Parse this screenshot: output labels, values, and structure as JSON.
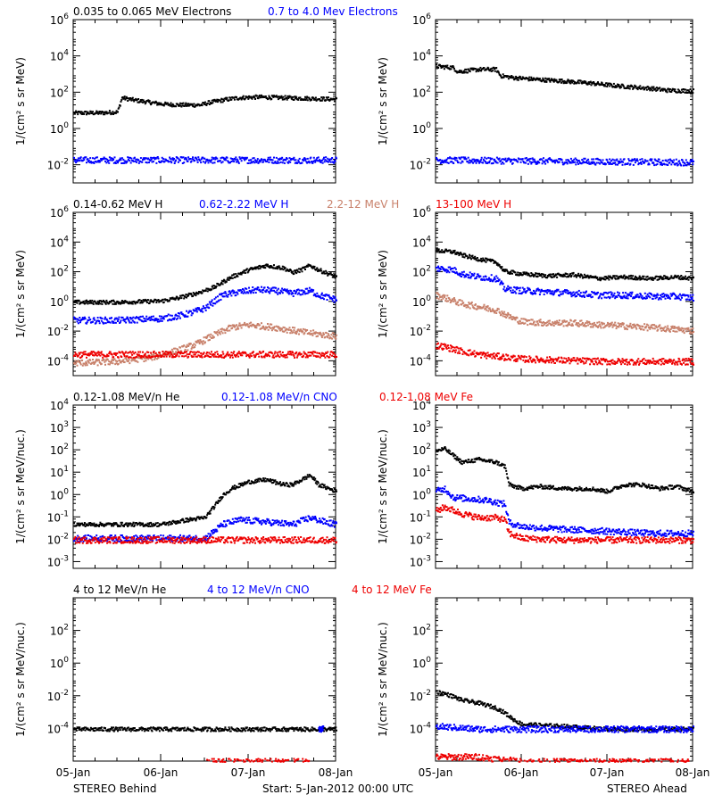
{
  "colors": {
    "black": "#000000",
    "blue": "#0000ff",
    "tan": "#c8806a",
    "red": "#ee0000"
  },
  "footer": {
    "left": "STEREO Behind",
    "center": "Start:  5-Jan-2012 00:00 UTC",
    "right": "STEREO Ahead"
  },
  "chart_data": [
    {
      "type": "scatter",
      "spacecraft": "STEREO Behind",
      "row": 1,
      "legend": [
        "0.035 to 0.065 MeV Electrons",
        "0.7 to 4.0 Mev Electrons"
      ],
      "ylabel": "1/(cm² s sr MeV)",
      "yscale": "log",
      "ylim": [
        0.001,
        1000000
      ],
      "yticks": [
        {
          "v": 0.01,
          "b": "10",
          "e": "-2"
        },
        {
          "v": 1,
          "b": "10",
          "e": "0"
        },
        {
          "v": 100,
          "b": "10",
          "e": "2"
        },
        {
          "v": 10000,
          "b": "10",
          "e": "4"
        },
        {
          "v": 1000000,
          "b": "10",
          "e": "6"
        }
      ],
      "xlim": [
        0,
        3
      ],
      "series": [
        {
          "name": "0.035 to 0.065 MeV Electrons",
          "color": "#000000",
          "x": [
            0,
            0.3,
            0.5,
            0.55,
            0.7,
            1.0,
            1.2,
            1.45,
            1.55,
            1.75,
            1.9,
            2.1,
            2.4,
            2.7,
            3.0
          ],
          "y": [
            8,
            8,
            9,
            55,
            40,
            25,
            22,
            22,
            30,
            45,
            55,
            60,
            55,
            50,
            45
          ]
        },
        {
          "name": "0.7 to 4.0 Mev Electrons",
          "color": "#0000ff",
          "x": [
            0,
            3
          ],
          "y": [
            0.02,
            0.02
          ]
        }
      ]
    },
    {
      "type": "scatter",
      "spacecraft": "STEREO Ahead",
      "row": 1,
      "ylabel": "1/(cm² s sr MeV)",
      "yscale": "log",
      "ylim": [
        0.001,
        1000000
      ],
      "yticks": [
        {
          "v": 0.01,
          "b": "10",
          "e": "-2"
        },
        {
          "v": 1,
          "b": "10",
          "e": "0"
        },
        {
          "v": 100,
          "b": "10",
          "e": "2"
        },
        {
          "v": 10000,
          "b": "10",
          "e": "4"
        },
        {
          "v": 1000000,
          "b": "10",
          "e": "6"
        }
      ],
      "xlim": [
        0,
        3
      ],
      "series": [
        {
          "name": "0.035 to 0.065 MeV Electrons",
          "color": "#000000",
          "x": [
            0,
            0.2,
            0.25,
            0.5,
            0.7,
            0.75,
            0.9,
            1.2,
            1.5,
            1.8,
            2.1,
            2.5,
            2.7,
            3.0
          ],
          "y": [
            3000,
            2500,
            1500,
            2000,
            2000,
            900,
            700,
            550,
            450,
            350,
            250,
            180,
            140,
            130
          ]
        },
        {
          "name": "0.7 to 4.0 Mev Electrons",
          "color": "#0000ff",
          "x": [
            0,
            3
          ],
          "y": [
            0.02,
            0.015
          ]
        }
      ]
    },
    {
      "type": "scatter",
      "spacecraft": "STEREO Behind",
      "row": 2,
      "legend": [
        "0.14-0.62 MeV H",
        "0.62-2.22 MeV H",
        "2.2-12 MeV H",
        "13-100 MeV H"
      ],
      "ylabel": "1/(cm² s sr MeV)",
      "yscale": "log",
      "ylim": [
        1e-05,
        1000000
      ],
      "yticks": [
        {
          "v": 0.0001,
          "b": "10",
          "e": "-4"
        },
        {
          "v": 0.01,
          "b": "10",
          "e": "-2"
        },
        {
          "v": 1,
          "b": "10",
          "e": "0"
        },
        {
          "v": 100,
          "b": "10",
          "e": "2"
        },
        {
          "v": 10000,
          "b": "10",
          "e": "4"
        },
        {
          "v": 1000000,
          "b": "10",
          "e": "6"
        }
      ],
      "xlim": [
        0,
        3
      ],
      "series": [
        {
          "name": "0.14-0.62 MeV H",
          "color": "#000000",
          "x": [
            0,
            0.5,
            1.0,
            1.2,
            1.4,
            1.6,
            1.8,
            2.0,
            2.2,
            2.4,
            2.5,
            2.6,
            2.7,
            2.8,
            3.0
          ],
          "y": [
            1,
            1,
            1.2,
            2,
            4,
            10,
            50,
            150,
            300,
            200,
            100,
            150,
            300,
            150,
            50
          ]
        },
        {
          "name": "0.62-2.22 MeV H",
          "color": "#0000ff",
          "x": [
            0,
            0.5,
            1.0,
            1.2,
            1.35,
            1.5,
            1.7,
            1.9,
            2.1,
            2.3,
            2.5,
            2.7,
            2.8,
            3.0
          ],
          "y": [
            0.06,
            0.06,
            0.08,
            0.12,
            0.2,
            0.4,
            3,
            5,
            7,
            6,
            4,
            6,
            3,
            1.5
          ]
        },
        {
          "name": "2.2-12 MeV H",
          "color": "#c8806a",
          "x": [
            0,
            0.5,
            0.9,
            1.2,
            1.4,
            1.6,
            1.8,
            2.0,
            2.3,
            2.6,
            3.0
          ],
          "y": [
            8e-05,
            0.0001,
            0.0002,
            0.0006,
            0.0015,
            0.006,
            0.02,
            0.03,
            0.02,
            0.01,
            0.005
          ]
        },
        {
          "name": "13-100 MeV H",
          "color": "#ee0000",
          "x": [
            0,
            3
          ],
          "y": [
            0.0003,
            0.0003
          ]
        }
      ]
    },
    {
      "type": "scatter",
      "spacecraft": "STEREO Ahead",
      "row": 2,
      "ylabel": "1/(cm² s sr MeV)",
      "yscale": "log",
      "ylim": [
        1e-05,
        1000000
      ],
      "yticks": [
        {
          "v": 0.0001,
          "b": "10",
          "e": "-4"
        },
        {
          "v": 0.01,
          "b": "10",
          "e": "-2"
        },
        {
          "v": 1,
          "b": "10",
          "e": "0"
        },
        {
          "v": 100,
          "b": "10",
          "e": "2"
        },
        {
          "v": 10000,
          "b": "10",
          "e": "4"
        },
        {
          "v": 1000000,
          "b": "10",
          "e": "6"
        }
      ],
      "xlim": [
        0,
        3
      ],
      "series": [
        {
          "name": "0.14-0.62 MeV H",
          "color": "#000000",
          "x": [
            0,
            0.2,
            0.3,
            0.5,
            0.7,
            0.8,
            1.0,
            1.3,
            1.6,
            1.9,
            2.2,
            2.5,
            2.8,
            3.0
          ],
          "y": [
            3000,
            2500,
            1500,
            800,
            500,
            120,
            80,
            60,
            70,
            40,
            50,
            40,
            50,
            40
          ]
        },
        {
          "name": "0.62-2.22 MeV H",
          "color": "#0000ff",
          "x": [
            0,
            0.2,
            0.3,
            0.5,
            0.7,
            0.8,
            1.0,
            1.3,
            1.6,
            1.9,
            2.2,
            2.5,
            2.8,
            3.0
          ],
          "y": [
            200,
            150,
            80,
            50,
            40,
            8,
            6,
            5,
            4,
            3,
            3,
            2.5,
            2.5,
            2
          ]
        },
        {
          "name": "2.2-12 MeV H",
          "color": "#c8806a",
          "x": [
            0,
            0.1,
            0.3,
            0.5,
            0.7,
            0.9,
            1.0,
            1.3,
            1.6,
            1.9,
            2.2,
            2.5,
            2.8,
            3.0
          ],
          "y": [
            3,
            2,
            0.8,
            0.5,
            0.3,
            0.08,
            0.05,
            0.04,
            0.04,
            0.03,
            0.025,
            0.02,
            0.015,
            0.012
          ]
        },
        {
          "name": "13-100 MeV H",
          "color": "#ee0000",
          "x": [
            0,
            0.1,
            0.3,
            0.5,
            0.8,
            1.0,
            1.5,
            2.0,
            2.5,
            3.0
          ],
          "y": [
            0.0012,
            0.001,
            0.0005,
            0.0003,
            0.0002,
            0.00015,
            0.00012,
            0.0001,
            0.0001,
            0.0001
          ]
        }
      ]
    },
    {
      "type": "scatter",
      "spacecraft": "STEREO Behind",
      "row": 3,
      "legend": [
        "0.12-1.08 MeV/n He",
        "0.12-1.08 MeV/n CNO",
        "0.12-1.08 MeV Fe"
      ],
      "ylabel": "1/(cm² s sr MeV/nuc.)",
      "yscale": "log",
      "ylim": [
        0.0005,
        10000
      ],
      "yticks": [
        {
          "v": 0.001,
          "b": "10",
          "e": "-3"
        },
        {
          "v": 0.01,
          "b": "10",
          "e": "-2"
        },
        {
          "v": 0.1,
          "b": "10",
          "e": "-1"
        },
        {
          "v": 1,
          "b": "10",
          "e": "0"
        },
        {
          "v": 10,
          "b": "10",
          "e": "1"
        },
        {
          "v": 100,
          "b": "10",
          "e": "2"
        },
        {
          "v": 1000,
          "b": "10",
          "e": "3"
        },
        {
          "v": 10000,
          "b": "10",
          "e": "4"
        }
      ],
      "xlim": [
        0,
        3
      ],
      "series": [
        {
          "name": "0.12-1.08 MeV/n He",
          "color": "#000000",
          "x": [
            0,
            0.5,
            1.0,
            1.3,
            1.5,
            1.6,
            1.7,
            1.8,
            2.0,
            2.2,
            2.4,
            2.5,
            2.7,
            2.8,
            3.0
          ],
          "y": [
            0.05,
            0.05,
            0.05,
            0.08,
            0.1,
            0.3,
            1,
            2,
            4,
            5,
            3,
            3,
            8,
            3,
            1.5
          ]
        },
        {
          "name": "0.12-1.08 MeV/n CNO",
          "color": "#0000ff",
          "x": [
            0,
            0.5,
            1.0,
            1.5,
            1.7,
            1.9,
            2.1,
            2.3,
            2.5,
            2.7,
            2.9,
            3.0
          ],
          "y": [
            0.012,
            0.012,
            0.012,
            0.012,
            0.05,
            0.08,
            0.07,
            0.06,
            0.05,
            0.1,
            0.06,
            0.05
          ]
        },
        {
          "name": "0.12-1.08 MeV Fe",
          "color": "#ee0000",
          "x": [
            0,
            3
          ],
          "y": [
            0.01,
            0.01
          ]
        }
      ]
    },
    {
      "type": "scatter",
      "spacecraft": "STEREO Ahead",
      "row": 3,
      "ylabel": "1/(cm² s sr MeV/nuc.)",
      "yscale": "log",
      "ylim": [
        0.0005,
        10000
      ],
      "yticks": [
        {
          "v": 0.001,
          "b": "10",
          "e": "-3"
        },
        {
          "v": 0.01,
          "b": "10",
          "e": "-2"
        },
        {
          "v": 0.1,
          "b": "10",
          "e": "-1"
        },
        {
          "v": 1,
          "b": "10",
          "e": "0"
        },
        {
          "v": 10,
          "b": "10",
          "e": "1"
        },
        {
          "v": 100,
          "b": "10",
          "e": "2"
        },
        {
          "v": 1000,
          "b": "10",
          "e": "3"
        },
        {
          "v": 10000,
          "b": "10",
          "e": "4"
        }
      ],
      "xlim": [
        0,
        3
      ],
      "series": [
        {
          "name": "0.12-1.08 MeV/n He",
          "color": "#000000",
          "x": [
            0,
            0.1,
            0.2,
            0.3,
            0.5,
            0.7,
            0.8,
            0.85,
            1.0,
            1.2,
            1.5,
            1.8,
            2.0,
            2.2,
            2.4,
            2.6,
            2.8,
            3.0
          ],
          "y": [
            100,
            120,
            60,
            30,
            40,
            30,
            20,
            3,
            2,
            2.5,
            2,
            2,
            1.5,
            3,
            3,
            2,
            2.5,
            1.5
          ]
        },
        {
          "name": "0.12-1.08 MeV/n CNO",
          "color": "#0000ff",
          "x": [
            0,
            0.1,
            0.2,
            0.4,
            0.6,
            0.8,
            0.85,
            1.0,
            1.5,
            2.0,
            2.5,
            3.0
          ],
          "y": [
            1.5,
            2,
            0.8,
            0.7,
            0.6,
            0.4,
            0.06,
            0.04,
            0.03,
            0.025,
            0.02,
            0.02
          ]
        },
        {
          "name": "0.12-1.08 MeV Fe",
          "color": "#ee0000",
          "x": [
            0,
            0.1,
            0.3,
            0.5,
            0.7,
            0.8,
            0.85,
            1.0,
            1.5,
            2.0,
            3.0
          ],
          "y": [
            0.2,
            0.3,
            0.15,
            0.1,
            0.1,
            0.08,
            0.02,
            0.012,
            0.01,
            0.01,
            0.01
          ]
        }
      ]
    },
    {
      "type": "scatter",
      "spacecraft": "STEREO Behind",
      "row": 4,
      "legend": [
        "4 to 12 MeV/n He",
        "4 to 12 MeV/n CNO",
        "4 to 12 MeV Fe"
      ],
      "ylabel": "1/(cm² s sr MeV/nuc.)",
      "yscale": "log",
      "ylim": [
        1e-06,
        10000
      ],
      "yticks": [
        {
          "v": 0.0001,
          "b": "10",
          "e": "-4"
        },
        {
          "v": 0.01,
          "b": "10",
          "e": "-2"
        },
        {
          "v": 1,
          "b": "10",
          "e": "0"
        },
        {
          "v": 100,
          "b": "10",
          "e": "2"
        }
      ],
      "xlim": [
        0,
        3
      ],
      "series": [
        {
          "name": "4 to 12 MeV/n He",
          "color": "#000000",
          "x": [
            0,
            3
          ],
          "y": [
            0.0001,
            0.0001
          ]
        },
        {
          "name": "4 to 12 MeV/n CNO",
          "color": "#0000ff",
          "x": [
            2.8,
            2.85
          ],
          "y": [
            0.0001,
            0.0001
          ]
        },
        {
          "name": "4 to 12 MeV Fe",
          "color": "#ee0000",
          "x": [
            1.5,
            2.7
          ],
          "y": [
            1e-06,
            1e-06
          ]
        }
      ]
    },
    {
      "type": "scatter",
      "spacecraft": "STEREO Ahead",
      "row": 4,
      "ylabel": "1/(cm² s sr MeV/nuc.)",
      "yscale": "log",
      "ylim": [
        1e-06,
        10000
      ],
      "yticks": [
        {
          "v": 0.0001,
          "b": "10",
          "e": "-4"
        },
        {
          "v": 0.01,
          "b": "10",
          "e": "-2"
        },
        {
          "v": 1,
          "b": "10",
          "e": "0"
        },
        {
          "v": 100,
          "b": "10",
          "e": "2"
        }
      ],
      "xlim": [
        0,
        3
      ],
      "series": [
        {
          "name": "4 to 12 MeV/n He",
          "color": "#000000",
          "x": [
            0,
            0.1,
            0.2,
            0.3,
            0.5,
            0.7,
            0.8,
            0.9,
            1.0,
            1.5,
            2.0,
            2.5,
            3.0
          ],
          "y": [
            0.02,
            0.015,
            0.01,
            0.006,
            0.004,
            0.002,
            0.001,
            0.0004,
            0.0002,
            0.00015,
            0.0001,
            0.0001,
            0.0001
          ]
        },
        {
          "name": "4 to 12 MeV/n CNO",
          "color": "#0000ff",
          "x": [
            0,
            0.5,
            1.0,
            2.0,
            3.0
          ],
          "y": [
            0.00015,
            0.0001,
            0.0001,
            0.0001,
            0.0001
          ]
        },
        {
          "name": "4 to 12 MeV Fe",
          "color": "#ee0000",
          "x": [
            0,
            0.5,
            1.0,
            2.0,
            3.0
          ],
          "y": [
            2e-06,
            2e-06,
            1e-06,
            1e-06,
            1e-06
          ]
        }
      ]
    }
  ],
  "xticks": [
    "05-Jan",
    "06-Jan",
    "07-Jan",
    "08-Jan"
  ]
}
